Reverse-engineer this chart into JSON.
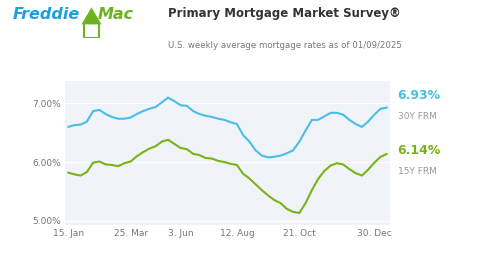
{
  "title": "Primary Mortgage Market Survey®",
  "subtitle": "U.S. weekly average mortgage rates as of 01/09/2025",
  "bg_color": "#ffffff",
  "plot_bg_color": "#f0f4f8",
  "line_30y_color": "#4bbde8",
  "line_15y_color": "#7ab317",
  "freddie_blue": "#1aa0dc",
  "freddie_green": "#6cb221",
  "ylim": [
    4.92,
    7.38
  ],
  "yticks": [
    5.0,
    6.0,
    7.0
  ],
  "ytick_labels": [
    "5.00%",
    "6.00%",
    "7.00%"
  ],
  "xtick_labels": [
    "15. Jan",
    "25. Mar",
    "3. Jun",
    "12. Aug",
    "21. Oct",
    "30. Dec"
  ],
  "xtick_positions": [
    0,
    10,
    18,
    27,
    37,
    49
  ],
  "label_30y": "6.93%",
  "label_30y_sub": "30Y FRM",
  "label_15y": "6.14%",
  "label_15y_sub": "15Y FRM",
  "x_data": [
    0,
    1,
    2,
    3,
    4,
    5,
    6,
    7,
    8,
    9,
    10,
    11,
    12,
    13,
    14,
    15,
    16,
    17,
    18,
    19,
    20,
    21,
    22,
    23,
    24,
    25,
    26,
    27,
    28,
    29,
    30,
    31,
    32,
    33,
    34,
    35,
    36,
    37,
    38,
    39,
    40,
    41,
    42,
    43,
    44,
    45,
    46,
    47,
    48,
    49,
    50,
    51
  ],
  "y_30y": [
    6.6,
    6.63,
    6.64,
    6.69,
    6.87,
    6.89,
    6.82,
    6.77,
    6.74,
    6.74,
    6.76,
    6.82,
    6.87,
    6.91,
    6.94,
    7.02,
    7.1,
    7.04,
    6.97,
    6.96,
    6.87,
    6.82,
    6.79,
    6.77,
    6.74,
    6.72,
    6.68,
    6.65,
    6.46,
    6.35,
    6.2,
    6.11,
    6.08,
    6.09,
    6.11,
    6.15,
    6.2,
    6.35,
    6.54,
    6.72,
    6.72,
    6.78,
    6.84,
    6.84,
    6.81,
    6.72,
    6.65,
    6.6,
    6.69,
    6.81,
    6.91,
    6.93
  ],
  "y_15y": [
    5.82,
    5.79,
    5.77,
    5.83,
    5.99,
    6.01,
    5.96,
    5.95,
    5.93,
    5.98,
    6.01,
    6.1,
    6.17,
    6.23,
    6.27,
    6.35,
    6.38,
    6.31,
    6.24,
    6.22,
    6.14,
    6.12,
    6.07,
    6.06,
    6.02,
    6.0,
    5.97,
    5.95,
    5.8,
    5.72,
    5.62,
    5.52,
    5.43,
    5.35,
    5.3,
    5.2,
    5.15,
    5.13,
    5.3,
    5.52,
    5.71,
    5.85,
    5.94,
    5.98,
    5.96,
    5.88,
    5.81,
    5.77,
    5.87,
    5.99,
    6.09,
    6.14
  ]
}
